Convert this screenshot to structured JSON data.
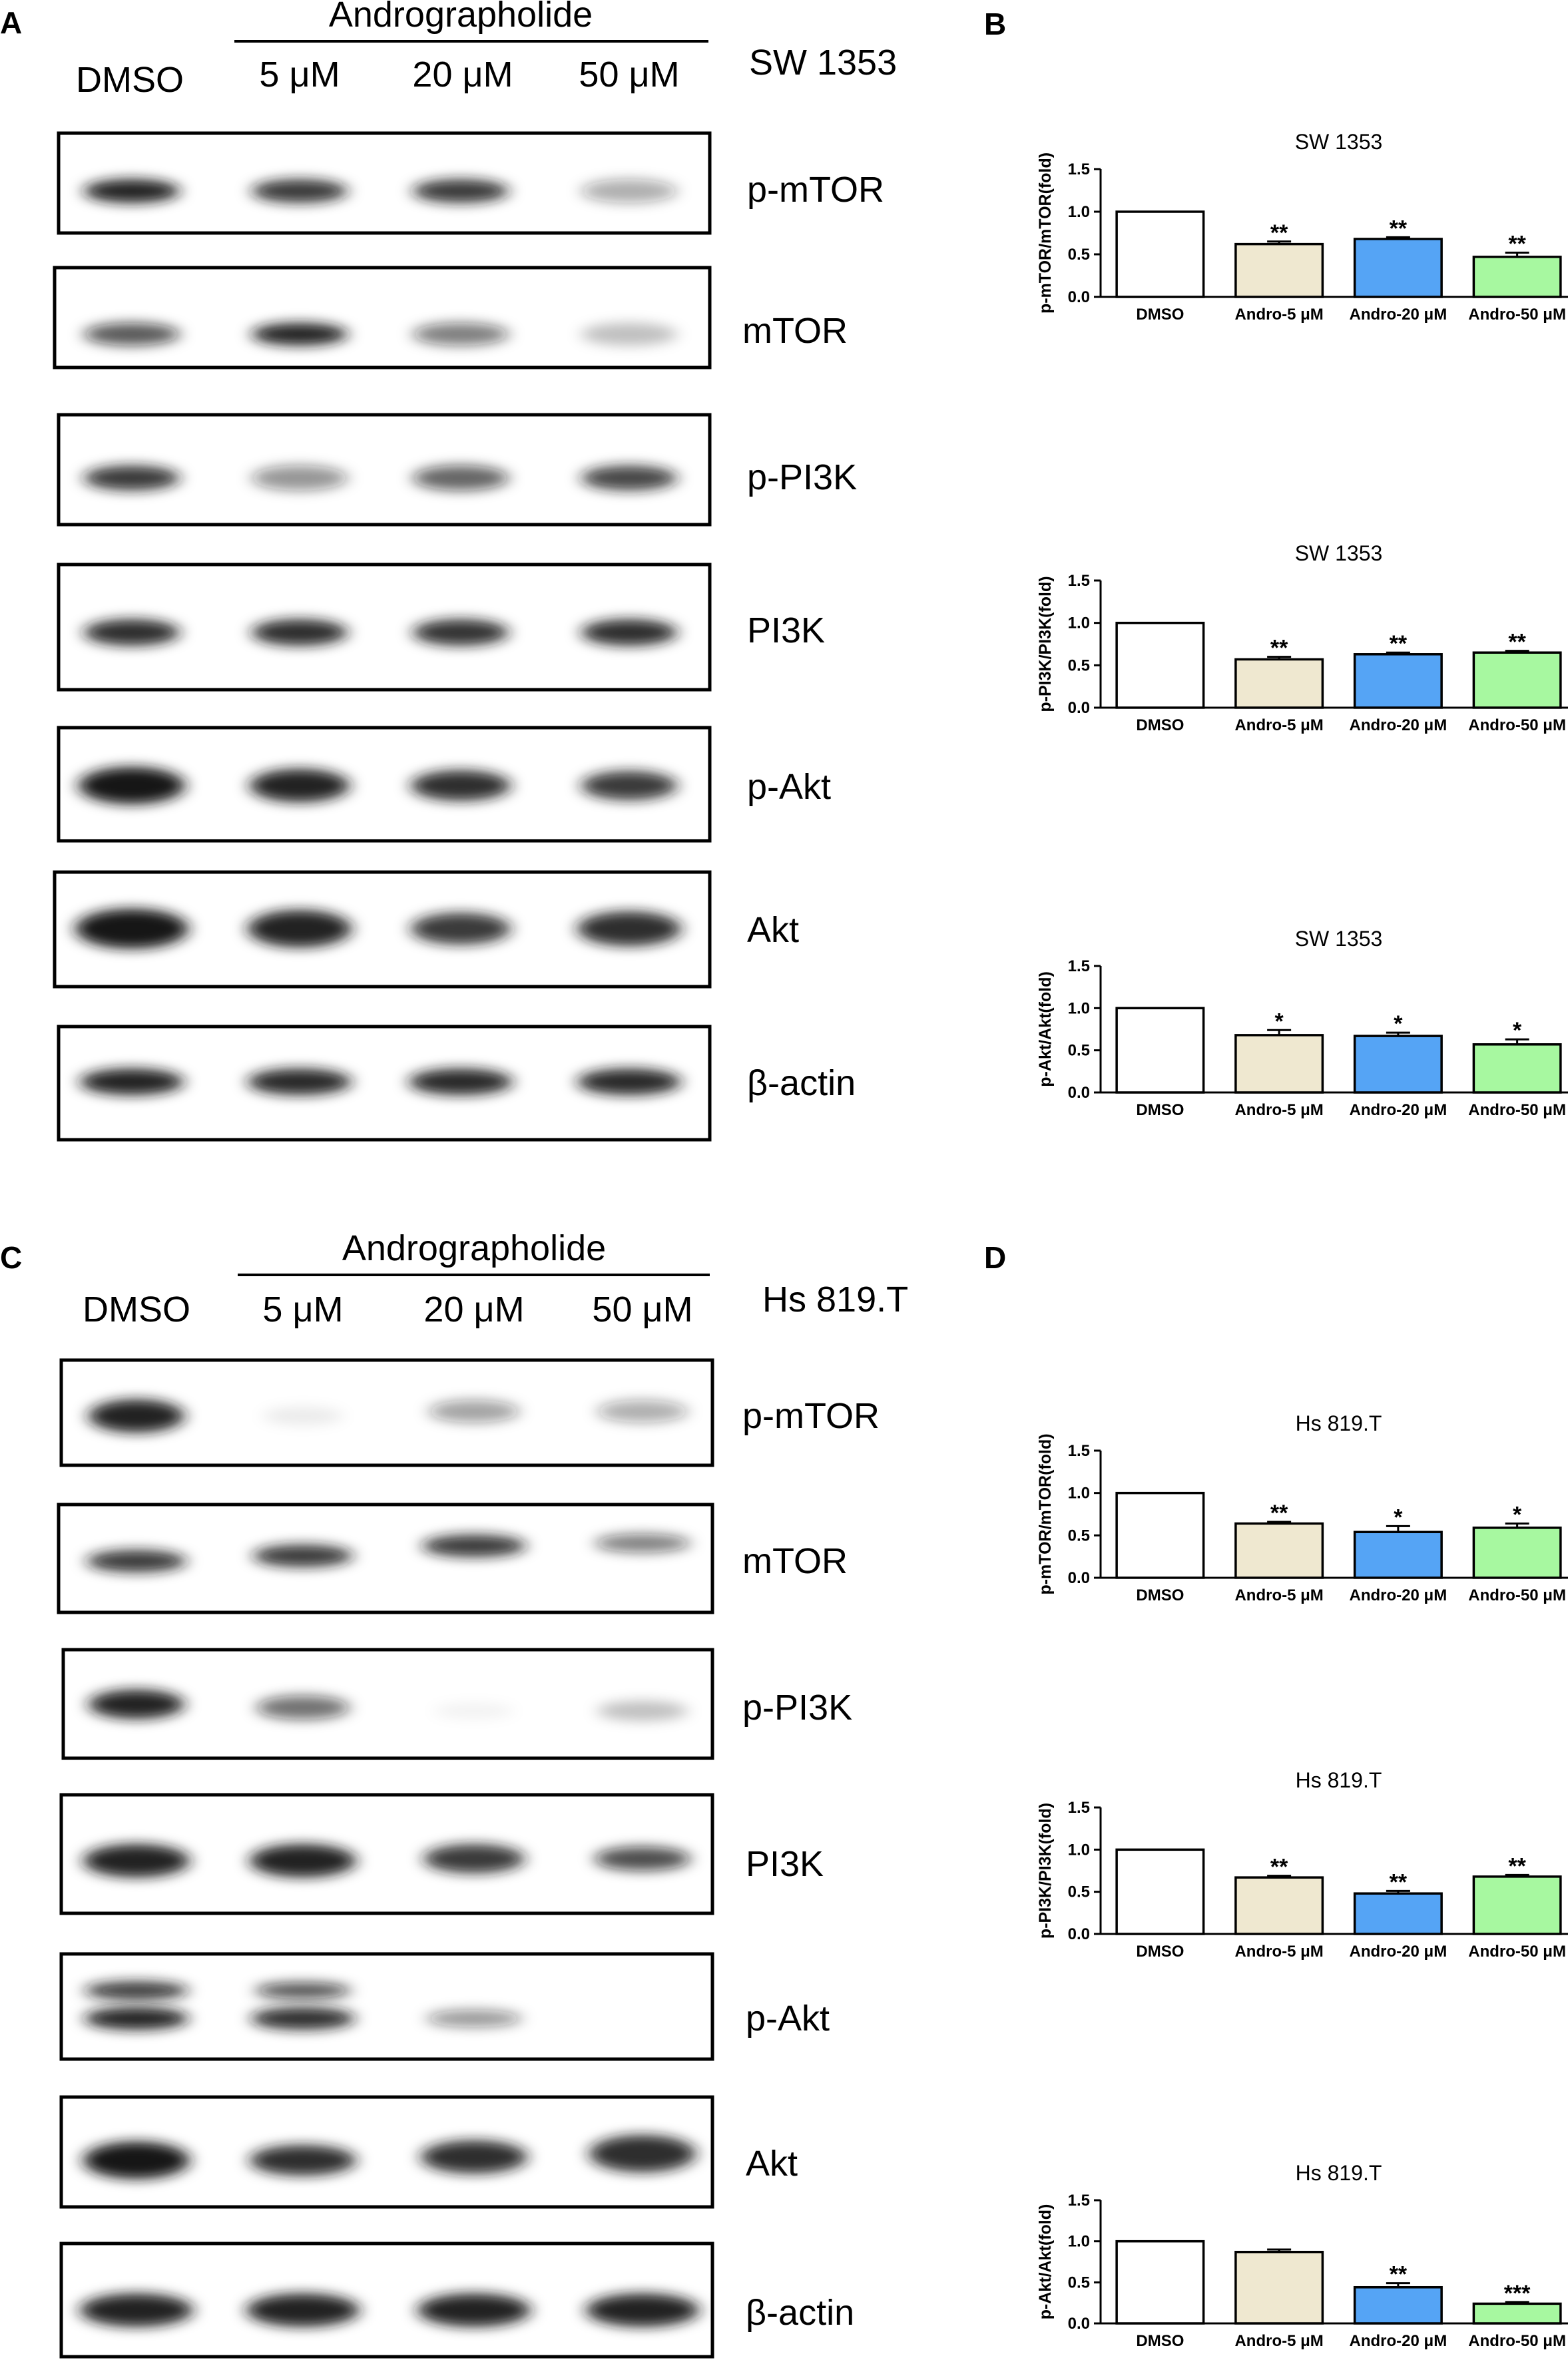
{
  "panel_letters": {
    "a": "A",
    "b": "B",
    "c": "C",
    "d": "D"
  },
  "colors": {
    "dmso": "#ffffff",
    "andro_5": "#efe8d0",
    "andro_20": "#55a4f5",
    "andro_50": "#a7f8a0",
    "band": "#151515",
    "frame": "#000000"
  },
  "blot_groups": [
    {
      "letter_key": "a",
      "treatment": "Andrographolide",
      "cell_line": "SW 1353",
      "lanes": [
        "DMSO",
        "5 μM",
        "20 μM",
        "50 μM"
      ],
      "rows": [
        {
          "label": "p-mTOR",
          "intensity": [
            0.95,
            0.85,
            0.85,
            0.35
          ]
        },
        {
          "label": "mTOR",
          "intensity": [
            0.7,
            0.95,
            0.55,
            0.25
          ]
        },
        {
          "label": "p-PI3K",
          "intensity": [
            0.85,
            0.45,
            0.65,
            0.8
          ]
        },
        {
          "label": "PI3K",
          "intensity": [
            0.9,
            0.9,
            0.88,
            0.9
          ]
        },
        {
          "label": "p-Akt",
          "intensity": [
            1.0,
            0.95,
            0.9,
            0.85
          ]
        },
        {
          "label": "Akt",
          "intensity": [
            1.0,
            0.95,
            0.85,
            0.9
          ]
        },
        {
          "label": "β-actin",
          "intensity": [
            0.95,
            0.92,
            0.92,
            0.92
          ]
        }
      ]
    },
    {
      "letter_key": "c",
      "treatment": "Andrographolide",
      "cell_line": "Hs 819.T",
      "lanes": [
        "DMSO",
        "5 μM",
        "20 μM",
        "50 μM"
      ],
      "rows": [
        {
          "label": "p-mTOR",
          "intensity": [
            0.95,
            0.08,
            0.4,
            0.35
          ]
        },
        {
          "label": "mTOR",
          "intensity": [
            0.85,
            0.85,
            0.85,
            0.55
          ]
        },
        {
          "label": "p-PI3K",
          "intensity": [
            0.95,
            0.6,
            0.05,
            0.25
          ]
        },
        {
          "label": "PI3K",
          "intensity": [
            0.95,
            0.95,
            0.85,
            0.75
          ]
        },
        {
          "label": "p-Akt",
          "intensity": [
            0.95,
            0.9,
            0.45,
            0.0
          ]
        },
        {
          "label": "Akt",
          "intensity": [
            1.0,
            0.9,
            0.9,
            0.9
          ]
        },
        {
          "label": "β-actin",
          "intensity": [
            0.95,
            0.95,
            0.95,
            0.95
          ]
        }
      ]
    }
  ],
  "chart_data": [
    {
      "type": "bar",
      "panel": "B",
      "title": "SW 1353",
      "ylabel": "p-mTOR/mTOR(fold)",
      "xlabel": "",
      "categories": [
        "DMSO",
        "Andro-5 μM",
        "Andro-20 μM",
        "Andro-50 μM"
      ],
      "values": [
        1.0,
        0.62,
        0.68,
        0.47
      ],
      "errors": [
        0,
        0.03,
        0.02,
        0.05
      ],
      "significance": [
        "",
        "**",
        "**",
        "**"
      ],
      "ylim": [
        0,
        1.5
      ],
      "yticks": [
        "0.0",
        "0.5",
        "1.0",
        "1.5"
      ],
      "grid": false
    },
    {
      "type": "bar",
      "panel": "B",
      "title": "SW 1353",
      "ylabel": "p-PI3K/PI3K(fold)",
      "xlabel": "",
      "categories": [
        "DMSO",
        "Andro-5 μM",
        "Andro-20 μM",
        "Andro-50 μM"
      ],
      "values": [
        1.0,
        0.57,
        0.63,
        0.65
      ],
      "errors": [
        0,
        0.03,
        0.02,
        0.02
      ],
      "significance": [
        "",
        "**",
        "**",
        "**"
      ],
      "ylim": [
        0,
        1.5
      ],
      "yticks": [
        "0.0",
        "0.5",
        "1.0",
        "1.5"
      ],
      "grid": false
    },
    {
      "type": "bar",
      "panel": "B",
      "title": "SW 1353",
      "ylabel": "p-Akt/Akt(fold)",
      "xlabel": "",
      "categories": [
        "DMSO",
        "Andro-5 μM",
        "Andro-20 μM",
        "Andro-50 μM"
      ],
      "values": [
        1.0,
        0.68,
        0.67,
        0.57
      ],
      "errors": [
        0,
        0.06,
        0.04,
        0.06
      ],
      "significance": [
        "",
        "*",
        "*",
        "*"
      ],
      "ylim": [
        0,
        1.5
      ],
      "yticks": [
        "0.0",
        "0.5",
        "1.0",
        "1.5"
      ],
      "grid": false
    },
    {
      "type": "bar",
      "panel": "D",
      "title": "Hs 819.T",
      "ylabel": "p-mTOR/mTOR(fold)",
      "xlabel": "",
      "categories": [
        "DMSO",
        "Andro-5 μM",
        "Andro-20 μM",
        "Andro-50 μM"
      ],
      "values": [
        1.0,
        0.64,
        0.54,
        0.59
      ],
      "errors": [
        0,
        0.02,
        0.07,
        0.05
      ],
      "significance": [
        "",
        "**",
        "*",
        "*"
      ],
      "ylim": [
        0,
        1.5
      ],
      "yticks": [
        "0.0",
        "0.5",
        "1.0",
        "1.5"
      ],
      "grid": false
    },
    {
      "type": "bar",
      "panel": "D",
      "title": "Hs 819.T",
      "ylabel": "p-PI3K/PI3K(fold)",
      "xlabel": "",
      "categories": [
        "DMSO",
        "Andro-5 μM",
        "Andro-20 μM",
        "Andro-50 μM"
      ],
      "values": [
        1.0,
        0.67,
        0.48,
        0.68
      ],
      "errors": [
        0,
        0.02,
        0.03,
        0.02
      ],
      "significance": [
        "",
        "**",
        "**",
        "**"
      ],
      "ylim": [
        0,
        1.5
      ],
      "yticks": [
        "0.0",
        "0.5",
        "1.0",
        "1.5"
      ],
      "grid": false
    },
    {
      "type": "bar",
      "panel": "D",
      "title": "Hs 819.T",
      "ylabel": "p-Akt/Akt(fold)",
      "xlabel": "",
      "categories": [
        "DMSO",
        "Andro-5 μM",
        "Andro-20 μM",
        "Andro-50 μM"
      ],
      "values": [
        1.0,
        0.87,
        0.44,
        0.24
      ],
      "errors": [
        0,
        0.03,
        0.05,
        0.02
      ],
      "significance": [
        "",
        "",
        "**",
        "***"
      ],
      "ylim": [
        0,
        1.5
      ],
      "yticks": [
        "0.0",
        "0.5",
        "1.0",
        "1.5"
      ],
      "grid": false
    }
  ]
}
